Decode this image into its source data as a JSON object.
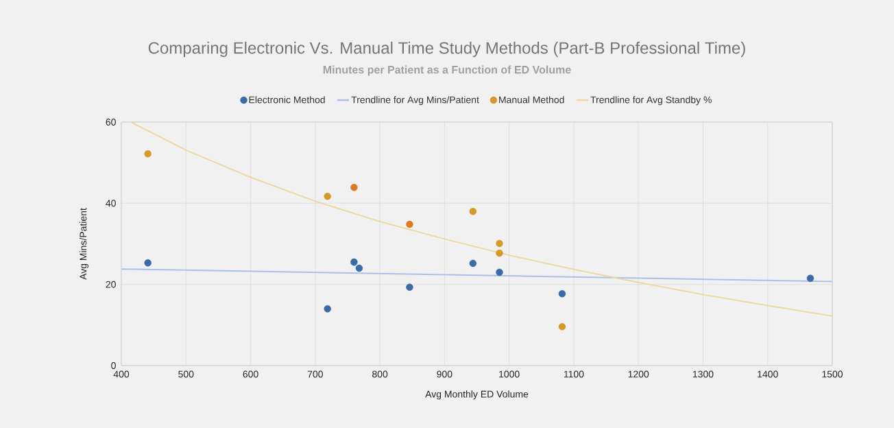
{
  "chart_data": {
    "type": "scatter",
    "title": "Comparing Electronic Vs. Manual Time Study Methods (Part-B Professional Time)",
    "subtitle": "Minutes per Patient as a Function of ED Volume",
    "xlabel": "Avg Monthly ED Volume",
    "ylabel": "Avg Mins/Patient",
    "xlim": [
      400,
      1500
    ],
    "ylim": [
      0,
      60
    ],
    "xticks": [
      400,
      500,
      600,
      700,
      800,
      900,
      1000,
      1100,
      1200,
      1300,
      1400,
      1500
    ],
    "yticks": [
      0,
      20,
      40,
      60
    ],
    "grid": true,
    "legend": "top",
    "series": [
      {
        "name": "Electronic Method",
        "color": "#3a6aa8",
        "x": [
          441,
          719,
          760,
          768,
          846,
          944,
          985,
          1082,
          1466
        ],
        "values": [
          25.3,
          14.0,
          25.5,
          24.0,
          19.3,
          25.2,
          23.0,
          17.7,
          21.5
        ]
      },
      {
        "name": "Trendline for Avg Mins/Patient",
        "type": "line",
        "color": "#a9c1e6",
        "x": [
          400,
          1500
        ],
        "values": [
          23.8,
          20.7
        ]
      },
      {
        "name": "Manual Method",
        "color": "#d49a2a",
        "colors": [
          "#d49a2a",
          "#d49a2a",
          "#dc7a26",
          "#dc7a26",
          "#d49a2a",
          "#d49a2a",
          "#d49a2a",
          "#d49a2a"
        ],
        "x": [
          441,
          719,
          760,
          846,
          944,
          985,
          985,
          1082
        ],
        "values": [
          52.2,
          41.7,
          43.9,
          34.8,
          38.0,
          30.1,
          27.7,
          9.6
        ]
      },
      {
        "name": "Trendline for Avg Standby %",
        "type": "line",
        "color": "#ecd8a0",
        "x": [
          415,
          500,
          600,
          700,
          800,
          900,
          1000,
          1100,
          1200,
          1300,
          1400,
          1500
        ],
        "values": [
          60,
          53.1,
          46.4,
          40.5,
          35.5,
          31.2,
          27.2,
          23.7,
          20.5,
          17.5,
          14.8,
          12.2
        ]
      }
    ]
  }
}
